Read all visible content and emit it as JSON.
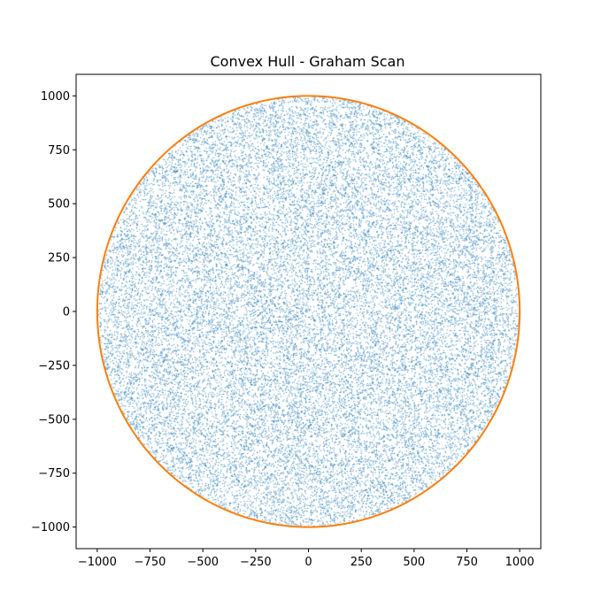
{
  "chart_data": {
    "type": "scatter",
    "title": "Convex Hull - Graham Scan",
    "xlabel": "",
    "ylabel": "",
    "xlim": [
      -1100,
      1100
    ],
    "ylim": [
      -1100,
      1100
    ],
    "xticks": [
      -1000,
      -750,
      -500,
      -250,
      0,
      250,
      500,
      750,
      1000
    ],
    "yticks": [
      -1000,
      -750,
      -500,
      -250,
      0,
      250,
      500,
      750,
      1000
    ],
    "xtick_labels": [
      "−1000",
      "−750",
      "−500",
      "−250",
      "0",
      "250",
      "500",
      "750",
      "1000"
    ],
    "ytick_labels": [
      "−1000",
      "−750",
      "−500",
      "−250",
      "0",
      "250",
      "500",
      "750",
      "1000"
    ],
    "grid": false,
    "legend": "none",
    "series": [
      {
        "kind": "points",
        "distribution": "uniform-disk",
        "center": [
          0,
          0
        ],
        "radius": 1000,
        "color": "#1f77b4"
      },
      {
        "kind": "hull-line",
        "color": "#ff7f0e",
        "x": [
          1000,
          966,
          866,
          707,
          500,
          259,
          0,
          -259,
          -500,
          -707,
          -866,
          -966,
          -1000,
          -966,
          -866,
          -707,
          -500,
          -259,
          0,
          259,
          500,
          707,
          866,
          966,
          1000
        ],
        "y": [
          0,
          259,
          500,
          707,
          866,
          966,
          1000,
          966,
          866,
          707,
          500,
          259,
          0,
          -259,
          -500,
          -707,
          -866,
          -966,
          -1000,
          -966,
          -866,
          -707,
          -500,
          -259,
          0
        ]
      }
    ]
  }
}
